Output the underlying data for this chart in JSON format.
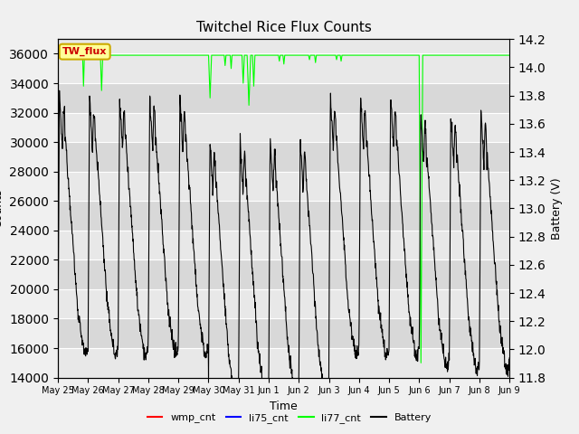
{
  "title": "Twitchel Rice Flux Counts",
  "xlabel": "Time",
  "ylabel_left": "Counts",
  "ylabel_right": "Battery (V)",
  "ylim_left": [
    14000,
    37000
  ],
  "ylim_right": [
    11.8,
    14.2
  ],
  "yticks_left": [
    14000,
    16000,
    18000,
    20000,
    22000,
    24000,
    26000,
    28000,
    30000,
    32000,
    34000,
    36000
  ],
  "yticks_right": [
    11.8,
    12.0,
    12.2,
    12.4,
    12.6,
    12.8,
    13.0,
    13.2,
    13.4,
    13.6,
    13.8,
    14.0,
    14.2
  ],
  "xtick_labels": [
    "May 25",
    "May 26",
    "May 27",
    "May 28",
    "May 29",
    "May 30",
    "May 31",
    "Jun 1",
    "Jun 2",
    "Jun 3",
    "Jun 4",
    "Jun 5",
    "Jun 6",
    "Jun 7",
    "Jun 8",
    "Jun 9"
  ],
  "background_color": "#f0f0f0",
  "plot_bg_color_light": "#e8e8e8",
  "plot_bg_color_dark": "#d8d8d8",
  "grid_color": "#ffffff",
  "li77_color": "#00ff00",
  "battery_color": "#000000",
  "wmp_color": "#ff0000",
  "li75_color": "#0000ff",
  "annotation_box_facecolor": "#ffff99",
  "annotation_box_edgecolor": "#ccaa00",
  "annotation_text": "TW_flux",
  "annotation_text_color": "#cc0000",
  "n_days": 15,
  "n_points": 1500
}
